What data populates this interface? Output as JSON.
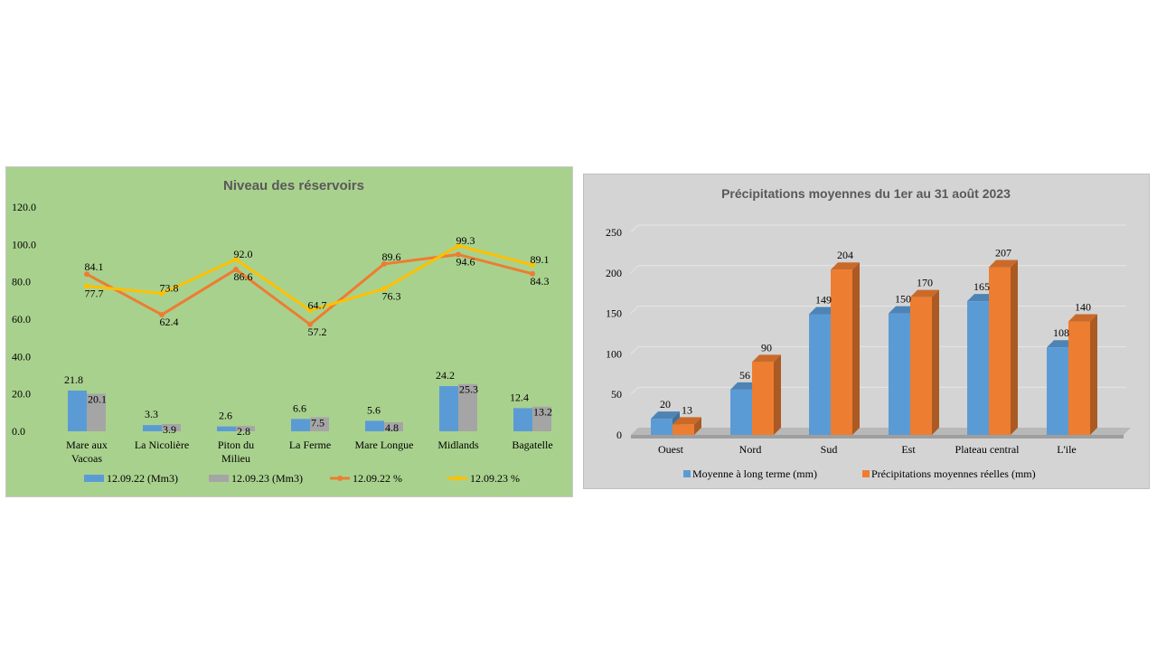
{
  "chart_data": [
    {
      "type": "bar+line",
      "title": "Niveau des réservoirs",
      "categories": [
        "Mare aux Vacoas",
        "La Nicolière",
        "Piton du Milieu",
        "La Ferme",
        "Mare Longue",
        "Midlands",
        "Bagatelle"
      ],
      "category_lines": [
        [
          "Mare aux",
          "Vacoas"
        ],
        [
          "La Nicolière"
        ],
        [
          "Piton du",
          "Milieu"
        ],
        [
          "La Ferme"
        ],
        [
          "Mare Longue"
        ],
        [
          "Midlands"
        ],
        [
          "Bagatelle"
        ]
      ],
      "ylim": [
        0,
        120
      ],
      "yticks": [
        "0.0",
        "20.0",
        "40.0",
        "60.0",
        "80.0",
        "100.0",
        "120.0"
      ],
      "series": [
        {
          "name": "12.09.22 (Mm3)",
          "kind": "bar",
          "color": "#5b9bd5",
          "values": [
            21.8,
            3.3,
            2.6,
            6.6,
            5.6,
            24.2,
            12.4
          ],
          "labels": [
            "21.8",
            "3.3",
            "2.6",
            "6.6",
            "5.6",
            "24.2",
            "12.4"
          ]
        },
        {
          "name": "12.09.23 (Mm3)",
          "kind": "bar",
          "color": "#a5a5a5",
          "values": [
            20.1,
            3.9,
            2.8,
            7.5,
            4.8,
            25.3,
            13.2
          ],
          "labels": [
            "20.1",
            "3.9",
            "2.8",
            "7.5",
            "4.8",
            "25.3",
            "13.2"
          ]
        },
        {
          "name": "12.09.22 %",
          "kind": "line",
          "color": "#ed7d31",
          "values": [
            84.1,
            62.4,
            86.6,
            57.2,
            89.6,
            94.6,
            84.3
          ],
          "labels": [
            "84.1",
            "62.4",
            "86.6",
            "57.2",
            "89.6",
            "94.6",
            "84.3"
          ]
        },
        {
          "name": "12.09.23 %",
          "kind": "line",
          "color": "#ffc000",
          "values": [
            77.7,
            73.8,
            92.0,
            64.7,
            76.3,
            99.3,
            89.1
          ],
          "labels": [
            "77.7",
            "73.8",
            "92.0",
            "64.7",
            "76.3",
            "99.3",
            "89.1"
          ]
        }
      ]
    },
    {
      "type": "bar",
      "title": "Précipitations moyennes du 1er au 31 août 2023",
      "categories": [
        "Ouest",
        "Nord",
        "Sud",
        "Est",
        "Plateau central",
        "L'ile"
      ],
      "ylim": [
        0,
        250
      ],
      "yticks": [
        "0",
        "50",
        "100",
        "150",
        "200",
        "250"
      ],
      "series": [
        {
          "name": "Moyenne à long terme (mm)",
          "color": "#5b9bd5",
          "values": [
            20,
            56,
            149,
            150,
            165,
            108
          ],
          "labels": [
            "20",
            "56",
            "149",
            "150",
            "165",
            "108"
          ]
        },
        {
          "name": "Précipitations moyennes réelles (mm)",
          "color": "#ed7d31",
          "values": [
            13,
            90,
            204,
            170,
            207,
            140
          ],
          "labels": [
            "13",
            "90",
            "204",
            "170",
            "207",
            "140"
          ]
        }
      ]
    }
  ]
}
